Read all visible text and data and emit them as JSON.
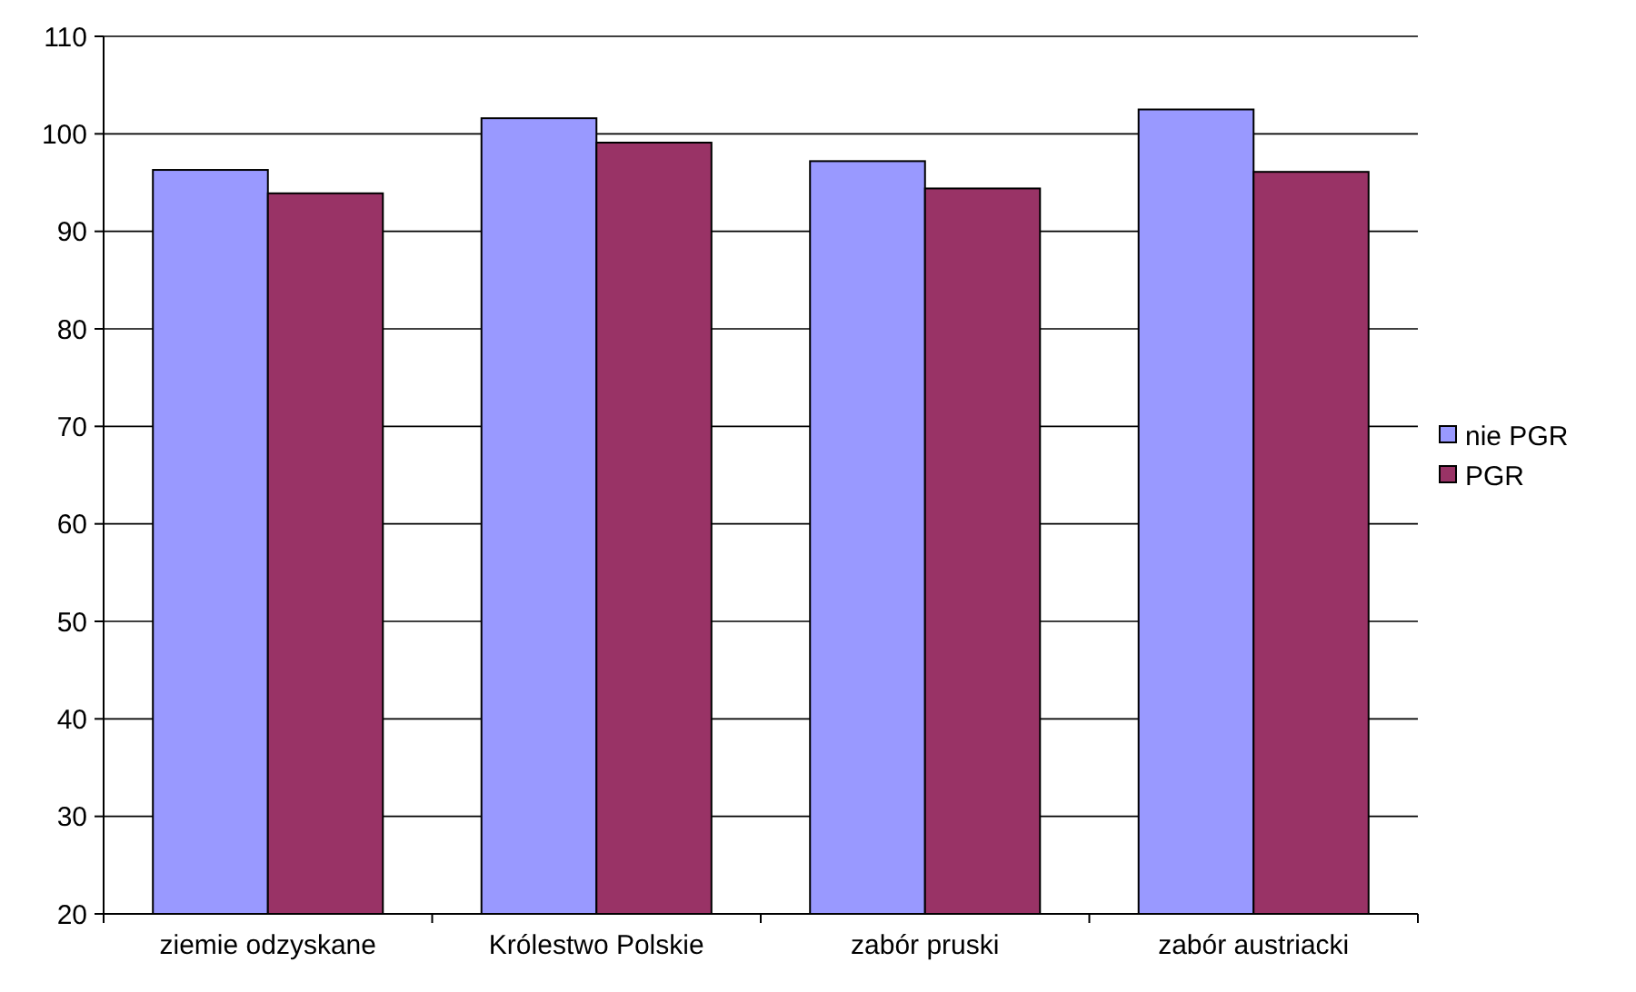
{
  "chart_data": {
    "type": "bar",
    "categories": [
      "ziemie odzyskane",
      "Królestwo Polskie",
      "zabór pruski",
      "zabór austriacki"
    ],
    "series": [
      {
        "name": "nie PGR",
        "color": "#9999ff",
        "values": [
          96.3,
          101.6,
          97.2,
          102.5
        ]
      },
      {
        "name": "PGR",
        "color": "#993366",
        "values": [
          93.9,
          99.1,
          94.4,
          96.1
        ]
      }
    ],
    "ylim": [
      20,
      110
    ],
    "yticks": [
      20,
      30,
      40,
      50,
      60,
      70,
      80,
      90,
      100,
      110
    ],
    "grid": "y",
    "legend": "right"
  }
}
